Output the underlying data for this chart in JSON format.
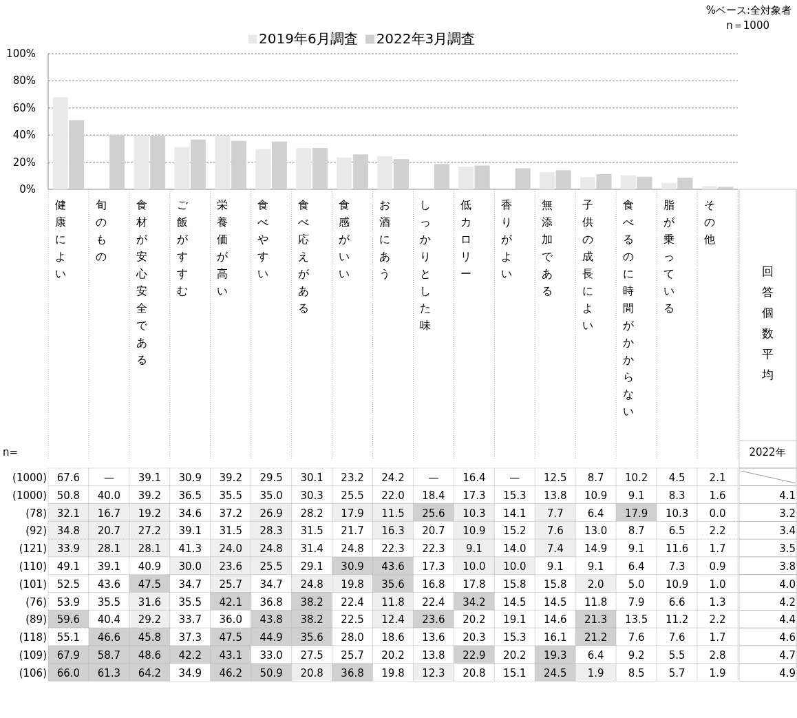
{
  "chart_data": [
    {
      "type": "bar",
      "categories": [
        "健康によい",
        "旬のもの",
        "食材が安心安全である",
        "ご飯がすすむ",
        "栄養価が高い",
        "食べやすい",
        "食べ応えがある",
        "食感がいい",
        "お酒にあう",
        "しっかりとした味",
        "低カロリー",
        "香りがよい",
        "無添加である",
        "子供の成長によい",
        "食べるのに時間がかからない",
        "脂が乗っている",
        "その他"
      ],
      "series": [
        {
          "name": "2019年6月調査",
          "color": "#e9e9e9",
          "values": [
            67.6,
            null,
            39.1,
            30.9,
            39.2,
            29.5,
            30.1,
            23.2,
            24.2,
            null,
            16.4,
            null,
            12.5,
            8.7,
            10.2,
            4.5,
            2.1
          ]
        },
        {
          "name": "2022年3月調査",
          "color": "#d0d0d0",
          "values": [
            50.8,
            40.0,
            39.2,
            36.5,
            35.5,
            35.0,
            30.3,
            25.5,
            22.0,
            18.4,
            17.3,
            15.3,
            13.8,
            10.9,
            9.1,
            8.3,
            1.6
          ]
        }
      ],
      "ylim": [
        0,
        100
      ],
      "yticks": [
        {
          "value": 0,
          "label": "0%"
        },
        {
          "value": 20,
          "label": "20%"
        },
        {
          "value": 40,
          "label": "40%"
        },
        {
          "value": 60,
          "label": "60%"
        },
        {
          "value": 80,
          "label": "80%"
        },
        {
          "value": 100,
          "label": "100%"
        }
      ],
      "grid": "y",
      "legend": "top",
      "annotations": [
        "%ベース:全対象者",
        "n＝1000"
      ]
    },
    {
      "type": "heatmap",
      "categories": [
        null,
        null,
        null,
        null,
        null,
        null,
        null,
        null,
        null,
        null,
        null,
        null,
        null,
        null,
        null,
        null,
        null
      ],
      "y_categories": [
        "(1000)",
        "(1000)",
        "(78)",
        "(92)",
        "(121)",
        "(110)",
        "(101)",
        "(76)",
        "(89)",
        "(118)",
        "(109)",
        "(106)"
      ],
      "y2_categories": [
        null,
        "4.1",
        "3.2",
        "3.4",
        "3.5",
        "3.8",
        "4.0",
        "4.2",
        "4.4",
        "4.6",
        "4.7",
        "4.9"
      ],
      "cells": [
        [
          67.6,
          null,
          39.1,
          30.9,
          39.2,
          29.5,
          30.1,
          23.2,
          24.2,
          null,
          16.4,
          null,
          12.5,
          8.7,
          10.2,
          4.5,
          2.1
        ],
        [
          50.8,
          40.0,
          39.2,
          36.5,
          35.5,
          35.0,
          30.3,
          25.5,
          22.0,
          18.4,
          17.3,
          15.3,
          13.8,
          10.9,
          9.1,
          8.3,
          1.6
        ],
        [
          32.1,
          16.7,
          19.2,
          34.6,
          37.2,
          26.9,
          28.2,
          17.9,
          11.5,
          25.6,
          10.3,
          14.1,
          7.7,
          6.4,
          17.9,
          10.3,
          0.0
        ],
        [
          34.8,
          20.7,
          27.2,
          39.1,
          31.5,
          28.3,
          31.5,
          21.7,
          16.3,
          20.7,
          10.9,
          15.2,
          7.6,
          13.0,
          8.7,
          6.5,
          2.2
        ],
        [
          33.9,
          28.1,
          28.1,
          41.3,
          24.0,
          24.8,
          31.4,
          24.8,
          22.3,
          22.3,
          9.1,
          14.0,
          7.4,
          14.9,
          9.1,
          11.6,
          1.7
        ],
        [
          49.1,
          39.1,
          40.9,
          30.0,
          23.6,
          25.5,
          29.1,
          30.9,
          43.6,
          17.3,
          10.0,
          10.0,
          9.1,
          9.1,
          6.4,
          7.3,
          0.9
        ],
        [
          52.5,
          43.6,
          47.5,
          34.7,
          25.7,
          34.7,
          24.8,
          19.8,
          35.6,
          16.8,
          17.8,
          15.8,
          15.8,
          2.0,
          5.0,
          10.9,
          1.0
        ],
        [
          53.9,
          35.5,
          31.6,
          35.5,
          42.1,
          36.8,
          38.2,
          22.4,
          11.8,
          22.4,
          34.2,
          14.5,
          14.5,
          11.8,
          7.9,
          6.6,
          1.3
        ],
        [
          59.6,
          40.4,
          29.2,
          33.7,
          36.0,
          43.8,
          38.2,
          22.5,
          12.4,
          23.6,
          20.2,
          19.1,
          14.6,
          21.3,
          13.5,
          11.2,
          2.2
        ],
        [
          55.1,
          46.6,
          45.8,
          37.3,
          47.5,
          44.9,
          35.6,
          28.0,
          18.6,
          13.6,
          20.3,
          15.3,
          16.1,
          21.2,
          7.6,
          7.6,
          1.7
        ],
        [
          67.9,
          58.7,
          48.6,
          42.2,
          43.1,
          33.0,
          27.5,
          25.7,
          20.2,
          13.8,
          22.9,
          20.2,
          19.3,
          6.4,
          9.2,
          5.5,
          2.8
        ],
        [
          66.0,
          61.3,
          64.2,
          34.9,
          46.2,
          50.9,
          20.8,
          36.8,
          19.8,
          12.3,
          20.8,
          15.1,
          24.5,
          1.9,
          8.5,
          5.7,
          1.9
        ]
      ],
      "cell_labels": [
        [
          "67.6",
          "—",
          "39.1",
          "30.9",
          "39.2",
          "29.5",
          "30.1",
          "23.2",
          "24.2",
          "—",
          "16.4",
          "—",
          "12.5",
          "8.7",
          "10.2",
          "4.5",
          "2.1"
        ],
        [
          "50.8",
          "40.0",
          "39.2",
          "36.5",
          "35.5",
          "35.0",
          "30.3",
          "25.5",
          "22.0",
          "18.4",
          "17.3",
          "15.3",
          "13.8",
          "10.9",
          "9.1",
          "8.3",
          "1.6"
        ],
        [
          "32.1",
          "16.7",
          "19.2",
          "34.6",
          "37.2",
          "26.9",
          "28.2",
          "17.9",
          "11.5",
          "25.6",
          "10.3",
          "14.1",
          "7.7",
          "6.4",
          "17.9",
          "10.3",
          "0.0"
        ],
        [
          "34.8",
          "20.7",
          "27.2",
          "39.1",
          "31.5",
          "28.3",
          "31.5",
          "21.7",
          "16.3",
          "20.7",
          "10.9",
          "15.2",
          "7.6",
          "13.0",
          "8.7",
          "6.5",
          "2.2"
        ],
        [
          "33.9",
          "28.1",
          "28.1",
          "41.3",
          "24.0",
          "24.8",
          "31.4",
          "24.8",
          "22.3",
          "22.3",
          "9.1",
          "14.0",
          "7.4",
          "14.9",
          "9.1",
          "11.6",
          "1.7"
        ],
        [
          "49.1",
          "39.1",
          "40.9",
          "30.0",
          "23.6",
          "25.5",
          "29.1",
          "30.9",
          "43.6",
          "17.3",
          "10.0",
          "10.0",
          "9.1",
          "9.1",
          "6.4",
          "7.3",
          "0.9"
        ],
        [
          "52.5",
          "43.6",
          "47.5",
          "34.7",
          "25.7",
          "34.7",
          "24.8",
          "19.8",
          "35.6",
          "16.8",
          "17.8",
          "15.8",
          "15.8",
          "2.0",
          "5.0",
          "10.9",
          "1.0"
        ],
        [
          "53.9",
          "35.5",
          "31.6",
          "35.5",
          "42.1",
          "36.8",
          "38.2",
          "22.4",
          "11.8",
          "22.4",
          "34.2",
          "14.5",
          "14.5",
          "11.8",
          "7.9",
          "6.6",
          "1.3"
        ],
        [
          "59.6",
          "40.4",
          "29.2",
          "33.7",
          "36.0",
          "43.8",
          "38.2",
          "22.5",
          "12.4",
          "23.6",
          "20.2",
          "19.1",
          "14.6",
          "21.3",
          "13.5",
          "11.2",
          "2.2"
        ],
        [
          "55.1",
          "46.6",
          "45.8",
          "37.3",
          "47.5",
          "44.9",
          "35.6",
          "28.0",
          "18.6",
          "13.6",
          "20.3",
          "15.3",
          "16.1",
          "21.2",
          "7.6",
          "7.6",
          "1.7"
        ],
        [
          "67.9",
          "58.7",
          "48.6",
          "42.2",
          "43.1",
          "33.0",
          "27.5",
          "25.7",
          "20.2",
          "13.8",
          "22.9",
          "20.2",
          "19.3",
          "6.4",
          "9.2",
          "5.5",
          "2.8"
        ],
        [
          "66.0",
          "61.3",
          "64.2",
          "34.9",
          "46.2",
          "50.9",
          "20.8",
          "36.8",
          "19.8",
          "12.3",
          "20.8",
          "15.1",
          "24.5",
          "1.9",
          "8.5",
          "5.7",
          "1.9"
        ]
      ],
      "tick_labels": "y",
      "annotations": [
        "n=",
        "回答個数平均",
        "2022年"
      ]
    }
  ]
}
